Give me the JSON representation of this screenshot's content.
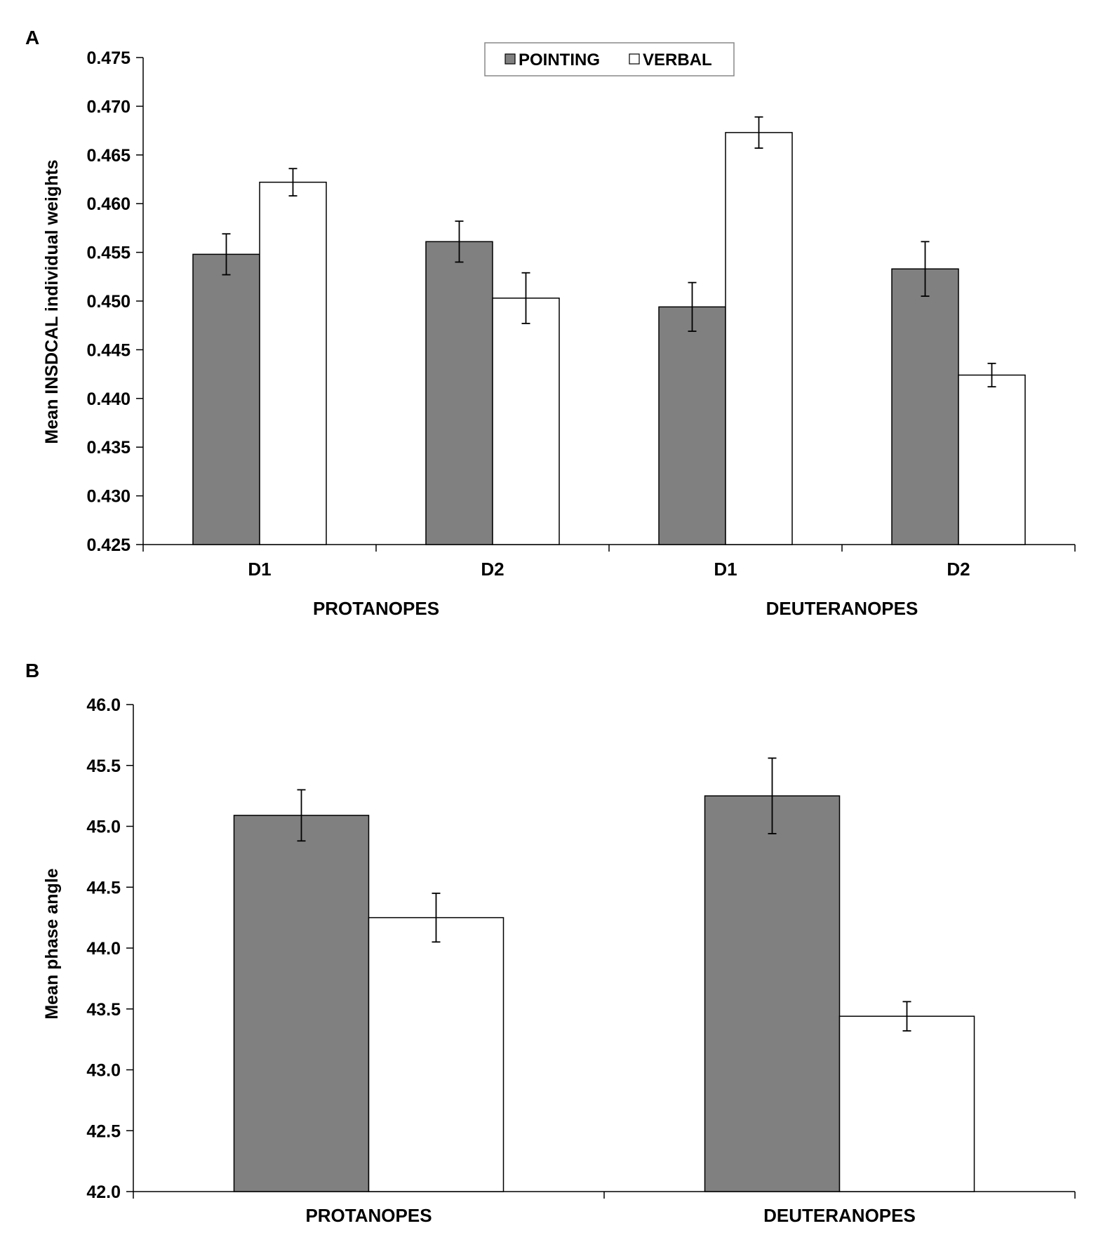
{
  "colors": {
    "pointing": "#808080",
    "verbal": "#ffffff",
    "stroke": "#000000"
  },
  "chart_data": [
    {
      "type": "bar",
      "panel": "A",
      "ylabel": "Mean INSDCAL individual weights",
      "ylim": [
        0.425,
        0.475
      ],
      "yticks": [
        "0.425",
        "0.430",
        "0.435",
        "0.440",
        "0.445",
        "0.450",
        "0.455",
        "0.460",
        "0.465",
        "0.470",
        "0.475"
      ],
      "groups": [
        "PROTANOPES",
        "DEUTERANOPES"
      ],
      "categories": [
        "D1",
        "D2",
        "D1",
        "D2"
      ],
      "legend": [
        "POINTING",
        "VERBAL"
      ],
      "series": [
        {
          "name": "POINTING",
          "values": [
            0.4548,
            0.4561,
            0.4494,
            0.4533
          ],
          "errors": [
            0.0021,
            0.0021,
            0.0025,
            0.0028
          ]
        },
        {
          "name": "VERBAL",
          "values": [
            0.4622,
            0.4503,
            0.4673,
            0.4424
          ],
          "errors": [
            0.0014,
            0.0026,
            0.0016,
            0.0012
          ]
        }
      ]
    },
    {
      "type": "bar",
      "panel": "B",
      "ylabel": "Mean phase angle",
      "ylim": [
        42.0,
        46.0
      ],
      "yticks": [
        "42.0",
        "42.5",
        "43.0",
        "43.5",
        "44.0",
        "44.5",
        "45.0",
        "45.5",
        "46.0"
      ],
      "categories": [
        "PROTANOPES",
        "DEUTERANOPES"
      ],
      "series": [
        {
          "name": "POINTING",
          "values": [
            45.09,
            45.25
          ],
          "errors": [
            0.21,
            0.31
          ]
        },
        {
          "name": "VERBAL",
          "values": [
            44.25,
            43.44
          ],
          "errors": [
            0.2,
            0.12
          ]
        }
      ]
    }
  ]
}
